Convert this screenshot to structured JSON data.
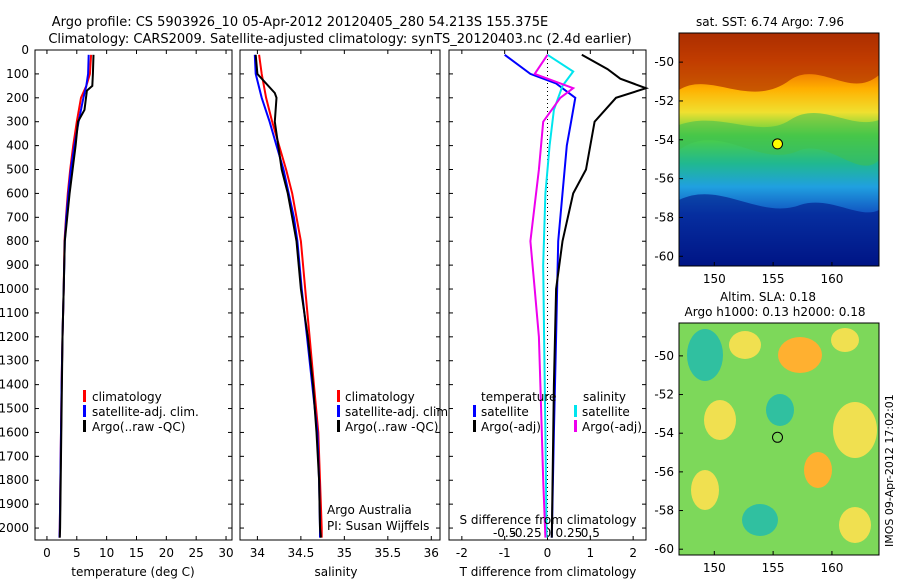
{
  "header": {
    "line1": "Argo profile: CS 5903926_10 05-Apr-2012 20120405_280 54.213S 155.375E",
    "line2": "Climatology: CARS2009. Satellite-adjusted climatology: synTS_20120403.nc (2.4d earlier)"
  },
  "credit": "IMOS 09-Apr-2012 17:02:01",
  "chart_data": [
    {
      "type": "line",
      "panel": "temperature",
      "xlabel": "temperature (deg C)",
      "ylabel": "",
      "xlim": [
        -2,
        31
      ],
      "ylim": [
        2050,
        0
      ],
      "xticks": [
        0,
        5,
        10,
        15,
        20,
        25,
        30
      ],
      "yticks": [
        0,
        100,
        200,
        300,
        400,
        500,
        600,
        700,
        800,
        900,
        1000,
        1100,
        1200,
        1300,
        1400,
        1500,
        1600,
        1700,
        1800,
        1900,
        2000
      ],
      "legend": {
        "position": "lower-center",
        "entries": [
          "climatology",
          "satellite-adj. clim.",
          "Argo(..raw -QC)"
        ]
      },
      "series": [
        {
          "name": "climatology",
          "color": "#ff0000",
          "points": [
            [
              7.4,
              20
            ],
            [
              7.2,
              100
            ],
            [
              6.6,
              150
            ],
            [
              5.7,
              200
            ],
            [
              5.0,
              300
            ],
            [
              4.4,
              400
            ],
            [
              3.9,
              500
            ],
            [
              3.5,
              600
            ],
            [
              3.2,
              700
            ],
            [
              2.95,
              800
            ],
            [
              2.8,
              1000
            ],
            [
              2.6,
              1200
            ],
            [
              2.45,
              1400
            ],
            [
              2.35,
              1600
            ],
            [
              2.25,
              1800
            ],
            [
              2.15,
              2000
            ],
            [
              2.1,
              2040
            ]
          ]
        },
        {
          "name": "satellite-adj. clim.",
          "color": "#0000ff",
          "points": [
            [
              7.0,
              20
            ],
            [
              6.9,
              100
            ],
            [
              6.6,
              150
            ],
            [
              6.1,
              200
            ],
            [
              5.3,
              300
            ],
            [
              4.6,
              400
            ],
            [
              4.0,
              500
            ],
            [
              3.6,
              600
            ],
            [
              3.25,
              700
            ],
            [
              3.0,
              800
            ],
            [
              2.8,
              1000
            ],
            [
              2.6,
              1200
            ],
            [
              2.45,
              1400
            ],
            [
              2.35,
              1600
            ],
            [
              2.25,
              1800
            ],
            [
              2.15,
              2000
            ],
            [
              2.1,
              2040
            ]
          ]
        },
        {
          "name": "Argo(..raw -QC)",
          "color": "#000000",
          "points": [
            [
              7.8,
              20
            ],
            [
              7.7,
              100
            ],
            [
              7.6,
              150
            ],
            [
              6.7,
              170
            ],
            [
              6.3,
              250
            ],
            [
              5.2,
              300
            ],
            [
              4.8,
              400
            ],
            [
              4.3,
              500
            ],
            [
              3.8,
              600
            ],
            [
              3.4,
              700
            ],
            [
              3.0,
              800
            ],
            [
              2.8,
              1000
            ],
            [
              2.6,
              1200
            ],
            [
              2.5,
              1400
            ],
            [
              2.4,
              1600
            ],
            [
              2.3,
              1800
            ],
            [
              2.2,
              2000
            ],
            [
              2.15,
              2040
            ]
          ]
        }
      ]
    },
    {
      "type": "line",
      "panel": "salinity",
      "xlabel": "salinity",
      "xlim": [
        33.8,
        36.1
      ],
      "ylim": [
        2050,
        0
      ],
      "xticks": [
        34,
        34.5,
        35,
        35.5,
        36
      ],
      "legend": {
        "position": "lower-right",
        "entries": [
          "climatology",
          "satellite-adj. clim.",
          "Argo(..raw -QC)"
        ]
      },
      "notes": [
        "Argo Australia",
        "PI: Susan Wijffels"
      ],
      "series": [
        {
          "name": "climatology",
          "color": "#ff0000",
          "points": [
            [
              34.02,
              20
            ],
            [
              34.05,
              100
            ],
            [
              34.1,
              200
            ],
            [
              34.17,
              300
            ],
            [
              34.25,
              400
            ],
            [
              34.33,
              500
            ],
            [
              34.4,
              600
            ],
            [
              34.45,
              700
            ],
            [
              34.5,
              800
            ],
            [
              34.55,
              1000
            ],
            [
              34.6,
              1200
            ],
            [
              34.65,
              1400
            ],
            [
              34.7,
              1600
            ],
            [
              34.72,
              1800
            ],
            [
              34.74,
              2000
            ],
            [
              34.74,
              2040
            ]
          ]
        },
        {
          "name": "satellite-adj. clim.",
          "color": "#0000ff",
          "points": [
            [
              33.97,
              20
            ],
            [
              33.98,
              100
            ],
            [
              34.05,
              200
            ],
            [
              34.14,
              300
            ],
            [
              34.22,
              400
            ],
            [
              34.3,
              500
            ],
            [
              34.36,
              600
            ],
            [
              34.42,
              700
            ],
            [
              34.46,
              800
            ],
            [
              34.51,
              1000
            ],
            [
              34.57,
              1200
            ],
            [
              34.63,
              1400
            ],
            [
              34.69,
              1600
            ],
            [
              34.71,
              1800
            ],
            [
              34.72,
              2000
            ],
            [
              34.72,
              2040
            ]
          ]
        },
        {
          "name": "Argo(..raw -QC)",
          "color": "#000000",
          "points": [
            [
              33.98,
              20
            ],
            [
              34.0,
              100
            ],
            [
              34.2,
              180
            ],
            [
              34.22,
              200
            ],
            [
              34.2,
              300
            ],
            [
              34.28,
              500
            ],
            [
              34.35,
              600
            ],
            [
              34.4,
              700
            ],
            [
              34.45,
              800
            ],
            [
              34.5,
              1000
            ],
            [
              34.58,
              1200
            ],
            [
              34.64,
              1400
            ],
            [
              34.68,
              1600
            ],
            [
              34.71,
              1800
            ],
            [
              34.72,
              2000
            ],
            [
              34.73,
              2040
            ]
          ]
        }
      ]
    },
    {
      "type": "line",
      "panel": "difference",
      "xlabel": "T difference from climatology",
      "xlabel_top": "S difference from climatology",
      "xlim": [
        -2.3,
        2.3
      ],
      "ylim": [
        2050,
        0
      ],
      "xticks": [
        -2,
        -1,
        0,
        1,
        2
      ],
      "xticks_S": [
        -0.5,
        -0.25,
        0,
        0.25,
        0.5
      ],
      "xticks_S_labels": [
        "-0.5",
        "-0.25",
        "0",
        "0.25",
        "0.5"
      ],
      "legend": {
        "position": "lower-center",
        "temperature_title": "temperature",
        "salinity_title": "salinity",
        "temperature_entries": [
          "satellite",
          "Argo(-adj)"
        ],
        "salinity_entries": [
          "satellite",
          "Argo(-adj)"
        ]
      },
      "series": [
        {
          "name": "satellite",
          "color": "#0000ff",
          "points": [
            [
              -1.0,
              20
            ],
            [
              -0.4,
              100
            ],
            [
              0.2,
              140
            ],
            [
              0.65,
              200
            ],
            [
              0.55,
              300
            ],
            [
              0.45,
              400
            ],
            [
              0.35,
              600
            ],
            [
              0.25,
              800
            ],
            [
              0.2,
              1200
            ],
            [
              0.15,
              1600
            ],
            [
              0.1,
              2040
            ]
          ]
        },
        {
          "name": "Argo(-adj)",
          "color": "#000000",
          "points": [
            [
              0.8,
              20
            ],
            [
              1.4,
              80
            ],
            [
              1.7,
              120
            ],
            [
              2.3,
              160
            ],
            [
              1.6,
              200
            ],
            [
              1.1,
              300
            ],
            [
              0.9,
              500
            ],
            [
              0.6,
              600
            ],
            [
              0.35,
              800
            ],
            [
              0.2,
              1000
            ],
            [
              0.15,
              1400
            ],
            [
              0.1,
              2040
            ]
          ]
        },
        {
          "name": "satellite",
          "color": "#00e5ee",
          "points": [
            [
              0.0,
              20
            ],
            [
              0.6,
              90
            ],
            [
              0.35,
              150
            ],
            [
              0.15,
              250
            ],
            [
              0.05,
              400
            ],
            [
              -0.05,
              600
            ],
            [
              -0.1,
              900
            ],
            [
              -0.08,
              1200
            ],
            [
              -0.05,
              1600
            ],
            [
              -0.02,
              2040
            ]
          ]
        },
        {
          "name": "Argo(-adj)",
          "color": "#ee00ee",
          "points": [
            [
              0.0,
              20
            ],
            [
              -0.3,
              100
            ],
            [
              0.6,
              160
            ],
            [
              0.3,
              200
            ],
            [
              -0.1,
              300
            ],
            [
              -0.2,
              500
            ],
            [
              -0.4,
              800
            ],
            [
              -0.3,
              1000
            ],
            [
              -0.2,
              1200
            ],
            [
              -0.15,
              1500
            ],
            [
              -0.1,
              1800
            ],
            [
              -0.05,
              2040
            ]
          ]
        }
      ]
    },
    {
      "type": "heatmap",
      "panel": "sst-map",
      "title": "sat. SST: 6.74  Argo: 7.96",
      "xlim": [
        147,
        164
      ],
      "ylim": [
        -60.5,
        -48.5
      ],
      "xticks": [
        150,
        155,
        160
      ],
      "yticks": [
        -50,
        -52,
        -54,
        -56,
        -58,
        -60
      ],
      "marker": {
        "lon": 155.375,
        "lat": -54.213
      }
    },
    {
      "type": "heatmap",
      "panel": "sla-map",
      "title": "Altim. SLA: 0.18",
      "subtitle": "Argo h1000: 0.13 h2000: 0.18",
      "xlim": [
        147,
        164
      ],
      "ylim": [
        -60.3,
        -48.3
      ],
      "xticks": [
        150,
        155,
        160
      ],
      "yticks": [
        -50,
        -52,
        -54,
        -56,
        -58,
        -60
      ],
      "marker": {
        "lon": 155.375,
        "lat": -54.213
      }
    }
  ]
}
